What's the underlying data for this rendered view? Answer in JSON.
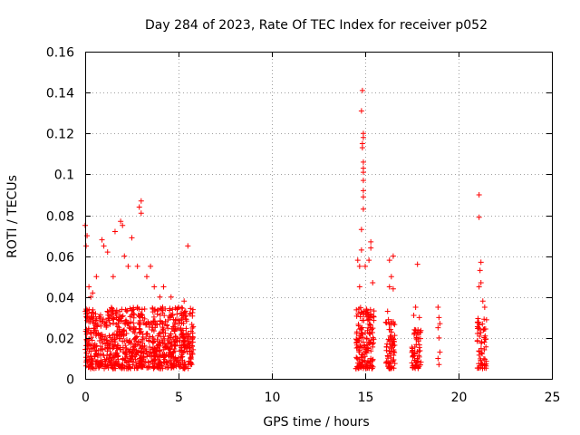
{
  "chart_data": {
    "type": "scatter",
    "title": "Day 284 of 2023, Rate Of TEC Index for receiver p052",
    "xlabel": "GPS time / hours",
    "ylabel": "ROTI / TECUs",
    "xlim": [
      0,
      25
    ],
    "ylim": [
      0,
      0.16
    ],
    "x_ticks": [
      "0",
      "5",
      "10",
      "15",
      "20",
      "25"
    ],
    "y_ticks": [
      "0",
      "0.02",
      "0.04",
      "0.06",
      "0.08",
      "0.1",
      "0.12",
      "0.14",
      "0.16"
    ],
    "grid": true,
    "marker": "+",
    "color": "#ff0000",
    "clusters": [
      {
        "x_range": [
          0.0,
          5.8
        ],
        "y_range": [
          0.005,
          0.035
        ],
        "count": 900
      },
      {
        "x_range": [
          14.5,
          15.5
        ],
        "y_range": [
          0.005,
          0.035
        ],
        "count": 160
      },
      {
        "x_range": [
          16.1,
          16.6
        ],
        "y_range": [
          0.005,
          0.03
        ],
        "count": 70
      },
      {
        "x_range": [
          17.5,
          18.0
        ],
        "y_range": [
          0.005,
          0.025
        ],
        "count": 60
      },
      {
        "x_range": [
          21.0,
          21.5
        ],
        "y_range": [
          0.005,
          0.03
        ],
        "count": 60
      }
    ],
    "points": [
      [
        0.0,
        0.075
      ],
      [
        0.1,
        0.07
      ],
      [
        0.05,
        0.065
      ],
      [
        0.2,
        0.045
      ],
      [
        0.3,
        0.04
      ],
      [
        0.4,
        0.042
      ],
      [
        0.9,
        0.068
      ],
      [
        1.0,
        0.065
      ],
      [
        1.2,
        0.062
      ],
      [
        1.6,
        0.072
      ],
      [
        1.9,
        0.077
      ],
      [
        2.0,
        0.075
      ],
      [
        2.3,
        0.055
      ],
      [
        2.5,
        0.069
      ],
      [
        2.8,
        0.055
      ],
      [
        2.9,
        0.084
      ],
      [
        3.0,
        0.087
      ],
      [
        3.0,
        0.081
      ],
      [
        3.3,
        0.05
      ],
      [
        3.7,
        0.045
      ],
      [
        4.2,
        0.045
      ],
      [
        4.6,
        0.04
      ],
      [
        5.3,
        0.038
      ],
      [
        5.5,
        0.065
      ],
      [
        5.0,
        0.035
      ],
      [
        1.5,
        0.05
      ],
      [
        0.6,
        0.05
      ],
      [
        2.1,
        0.06
      ],
      [
        3.5,
        0.055
      ],
      [
        4.0,
        0.04
      ],
      [
        14.6,
        0.058
      ],
      [
        14.7,
        0.055
      ],
      [
        14.8,
        0.073
      ],
      [
        14.8,
        0.063
      ],
      [
        14.9,
        0.083
      ],
      [
        14.9,
        0.089
      ],
      [
        14.9,
        0.092
      ],
      [
        14.9,
        0.097
      ],
      [
        14.9,
        0.101
      ],
      [
        14.9,
        0.103
      ],
      [
        14.9,
        0.106
      ],
      [
        14.85,
        0.113
      ],
      [
        14.85,
        0.115
      ],
      [
        14.9,
        0.118
      ],
      [
        14.9,
        0.12
      ],
      [
        14.8,
        0.131
      ],
      [
        14.85,
        0.141
      ],
      [
        15.0,
        0.055
      ],
      [
        15.2,
        0.058
      ],
      [
        15.3,
        0.067
      ],
      [
        15.3,
        0.064
      ],
      [
        15.4,
        0.047
      ],
      [
        14.7,
        0.045
      ],
      [
        16.3,
        0.058
      ],
      [
        16.5,
        0.06
      ],
      [
        16.4,
        0.05
      ],
      [
        16.5,
        0.044
      ],
      [
        16.3,
        0.045
      ],
      [
        16.2,
        0.033
      ],
      [
        17.8,
        0.056
      ],
      [
        17.7,
        0.035
      ],
      [
        17.6,
        0.031
      ],
      [
        17.9,
        0.03
      ],
      [
        18.9,
        0.035
      ],
      [
        18.95,
        0.03
      ],
      [
        18.9,
        0.025
      ],
      [
        19.0,
        0.027
      ],
      [
        18.95,
        0.02
      ],
      [
        19.0,
        0.013
      ],
      [
        18.9,
        0.01
      ],
      [
        18.95,
        0.007
      ],
      [
        21.1,
        0.09
      ],
      [
        21.1,
        0.079
      ],
      [
        21.2,
        0.057
      ],
      [
        21.15,
        0.053
      ],
      [
        21.2,
        0.047
      ],
      [
        21.1,
        0.045
      ],
      [
        21.3,
        0.038
      ],
      [
        21.4,
        0.035
      ]
    ]
  }
}
